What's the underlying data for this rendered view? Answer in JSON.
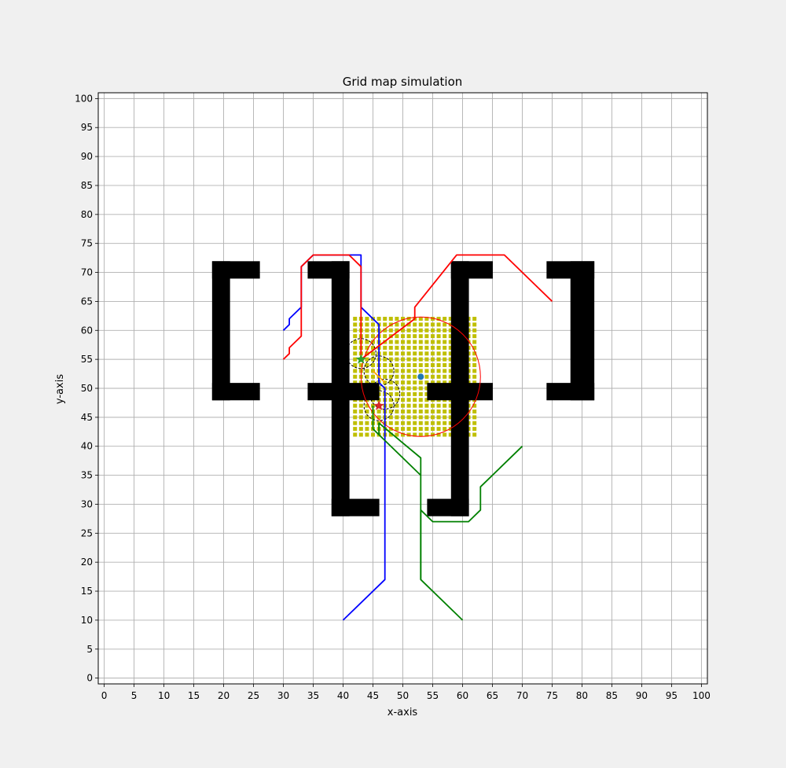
{
  "chart_data": {
    "type": "line",
    "title": "Grid map simulation",
    "xlabel": "x-axis",
    "ylabel": "y-axis",
    "xlim": [
      -1,
      101
    ],
    "ylim": [
      -1,
      101
    ],
    "xticks": [
      "0",
      "5",
      "10",
      "15",
      "20",
      "25",
      "30",
      "35",
      "40",
      "45",
      "50",
      "55",
      "60",
      "65",
      "70",
      "75",
      "80",
      "85",
      "90",
      "95",
      "100"
    ],
    "yticks": [
      "0",
      "5",
      "10",
      "15",
      "20",
      "25",
      "30",
      "35",
      "40",
      "45",
      "50",
      "55",
      "60",
      "65",
      "70",
      "75",
      "80",
      "85",
      "90",
      "95",
      "100"
    ],
    "grid": true,
    "obstacles": [
      {
        "x": [
          18,
          21
        ],
        "y": [
          48,
          72
        ]
      },
      {
        "x": [
          18,
          26
        ],
        "y": [
          69,
          72
        ]
      },
      {
        "x": [
          18,
          26
        ],
        "y": [
          48,
          51
        ]
      },
      {
        "x": [
          34,
          41
        ],
        "y": [
          69,
          72
        ]
      },
      {
        "x": [
          38,
          41
        ],
        "y": [
          28,
          72
        ]
      },
      {
        "x": [
          38,
          46
        ],
        "y": [
          28,
          31
        ]
      },
      {
        "x": [
          34,
          46
        ],
        "y": [
          48,
          51
        ]
      },
      {
        "x": [
          54,
          65
        ],
        "y": [
          48,
          51
        ]
      },
      {
        "x": [
          58,
          61
        ],
        "y": [
          28,
          72
        ]
      },
      {
        "x": [
          54,
          61
        ],
        "y": [
          28,
          31
        ]
      },
      {
        "x": [
          58,
          65
        ],
        "y": [
          69,
          72
        ]
      },
      {
        "x": [
          74,
          82
        ],
        "y": [
          69,
          72
        ]
      },
      {
        "x": [
          78,
          82
        ],
        "y": [
          48,
          72
        ]
      },
      {
        "x": [
          74,
          82
        ],
        "y": [
          48,
          51
        ]
      }
    ],
    "yellow_region": {
      "x": [
        42,
        62
      ],
      "y": [
        42,
        62
      ]
    },
    "series": [
      {
        "color": "#0000ff",
        "points": [
          [
            40,
            10
          ],
          [
            47,
            17
          ],
          [
            47,
            50
          ],
          [
            46,
            51
          ],
          [
            46,
            61
          ],
          [
            43,
            64
          ],
          [
            43,
            73
          ],
          [
            41,
            73
          ],
          [
            35,
            73
          ],
          [
            33,
            71
          ],
          [
            33,
            64
          ],
          [
            31,
            62
          ],
          [
            31,
            61
          ],
          [
            30,
            60
          ]
        ]
      },
      {
        "color": "#008000",
        "points": [
          [
            60,
            10
          ],
          [
            53,
            17
          ],
          [
            53,
            29
          ],
          [
            55,
            27
          ],
          [
            61,
            27
          ],
          [
            63,
            29
          ],
          [
            63,
            33
          ],
          [
            70,
            40
          ]
        ]
      },
      {
        "color": "#008000",
        "points": [
          [
            53,
            17
          ],
          [
            53,
            38
          ],
          [
            46,
            44
          ],
          [
            46,
            42
          ]
        ]
      },
      {
        "color": "#008000",
        "points": [
          [
            53,
            35
          ],
          [
            45,
            43
          ],
          [
            45,
            47
          ]
        ]
      },
      {
        "color": "#ff0000",
        "points": [
          [
            30,
            55
          ],
          [
            31,
            56
          ],
          [
            31,
            57
          ],
          [
            33,
            59
          ],
          [
            33,
            71
          ],
          [
            35,
            73
          ],
          [
            41,
            73
          ],
          [
            43,
            71
          ],
          [
            43,
            55
          ],
          [
            52,
            62
          ],
          [
            52,
            64
          ],
          [
            59,
            73
          ],
          [
            67,
            73
          ],
          [
            75,
            65
          ]
        ]
      },
      {
        "color": "#ffa500",
        "points": [
          [
            45,
            53
          ],
          [
            46,
            52
          ],
          [
            47,
            51
          ]
        ]
      }
    ],
    "circles": [
      {
        "cx": 43,
        "cy": 56,
        "r": 2.5,
        "color": "#000000"
      },
      {
        "cx": 46,
        "cy": 53,
        "r": 2.5,
        "color": "#000000"
      },
      {
        "cx": 47,
        "cy": 49,
        "r": 2.5,
        "color": "#000000"
      },
      {
        "cx": 46,
        "cy": 47,
        "r": 2.5,
        "color": "#000000"
      },
      {
        "cx": 53,
        "cy": 52,
        "r": 10,
        "color": "#ff0000"
      }
    ],
    "markers": [
      {
        "x": 43,
        "y": 55,
        "shape": "star",
        "color": "#2ca02c"
      },
      {
        "x": 46,
        "y": 47,
        "shape": "star",
        "color": "#d62728"
      },
      {
        "x": 53,
        "y": 52,
        "shape": "dot",
        "color": "#1f77b4"
      }
    ]
  }
}
